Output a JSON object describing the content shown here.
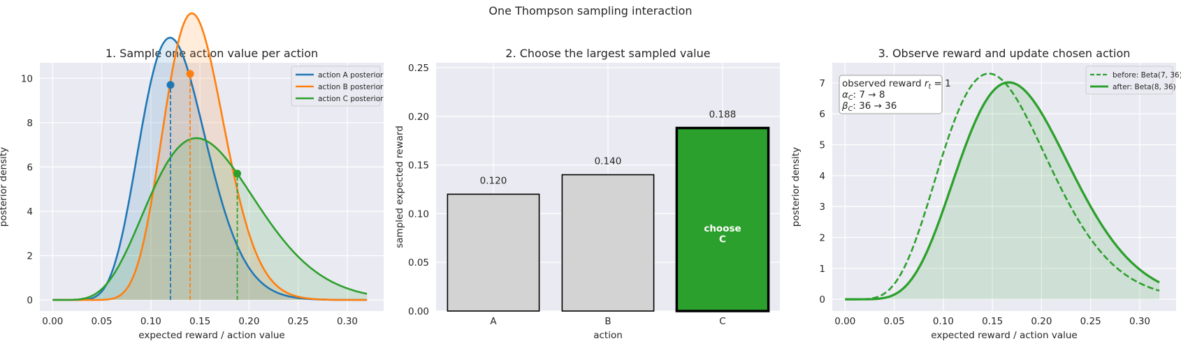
{
  "suptitle": "One Thompson sampling interaction",
  "chart_data": [
    {
      "type": "line",
      "title": "1. Sample one action value per action",
      "xlabel": "expected reward / action value",
      "ylabel": "posterior density",
      "xlim": [
        -0.013,
        0.337
      ],
      "ylim": [
        -0.5,
        10.7
      ],
      "x_range": [
        0,
        0.32
      ],
      "xticks": [
        "0.00",
        "0.05",
        "0.10",
        "0.15",
        "0.20",
        "0.25",
        "0.30"
      ],
      "yticks": [
        "0",
        "2",
        "4",
        "6",
        "8",
        "10"
      ],
      "legend_position": "top-right",
      "series": [
        {
          "name": "action A posterior",
          "distribution": "Beta(12, 82)",
          "color": "#1f77b4",
          "sample": 0.12,
          "sample_density": 9.7
        },
        {
          "name": "action B posterior",
          "distribution": "Beta(19, 110)",
          "color": "#ff7f0e",
          "sample": 0.14,
          "sample_density": 10.2
        },
        {
          "name": "action C posterior",
          "distribution": "Beta(7, 36)",
          "color": "#2ca02c",
          "sample": 0.188,
          "sample_density": 5.7
        }
      ]
    },
    {
      "type": "bar",
      "title": "2. Choose the largest sampled value",
      "xlabel": "action",
      "ylabel": "sampled expected reward",
      "ylim": [
        0,
        0.255
      ],
      "yticks": [
        "0.00",
        "0.05",
        "0.10",
        "0.15",
        "0.20",
        "0.25"
      ],
      "categories": [
        "A",
        "B",
        "C"
      ],
      "values": [
        0.12,
        0.14,
        0.188
      ],
      "value_labels": [
        "0.120",
        "0.140",
        "0.188"
      ],
      "colors": [
        "#d3d3d3",
        "#d3d3d3",
        "#2ca02c"
      ],
      "chosen_index": 2,
      "annotation": [
        "choose",
        "C"
      ]
    },
    {
      "type": "line",
      "title": "3. Observe reward and update chosen action",
      "xlabel": "expected reward / action value",
      "ylabel": "posterior density",
      "xlim": [
        -0.013,
        0.337
      ],
      "ylim": [
        -0.38,
        7.65
      ],
      "x_range": [
        0,
        0.32
      ],
      "xticks": [
        "0.00",
        "0.05",
        "0.10",
        "0.15",
        "0.20",
        "0.25",
        "0.30"
      ],
      "yticks": [
        "0",
        "1",
        "2",
        "3",
        "4",
        "5",
        "6",
        "7"
      ],
      "legend_position": "top-right",
      "color": "#2ca02c",
      "series": [
        {
          "name": "before: Beta(7, 36)",
          "distribution": "Beta(7, 36)",
          "style": "dashed"
        },
        {
          "name": "after: Beta(8, 36)",
          "distribution": "Beta(8, 36)",
          "style": "solid"
        }
      ],
      "info_box": {
        "observed_prefix": "observed reward ",
        "observed_symbol": "r",
        "observed_subscript": "t",
        "observed_value": " = 1",
        "alpha_symbol": "α",
        "alpha_subscript": "C",
        "alpha_update": ": 7 → 8",
        "beta_symbol": "β",
        "beta_subscript": "C",
        "beta_update": ": 36 → 36"
      }
    }
  ]
}
